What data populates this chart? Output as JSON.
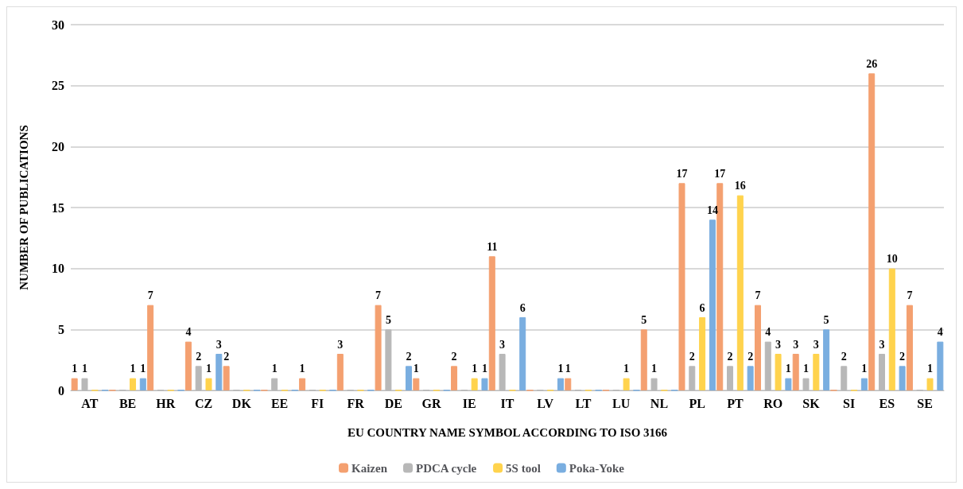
{
  "chart_data": {
    "type": "bar",
    "xlabel": "EU COUNTRY NAME SYMBOL ACCORDING TO ISO 3166",
    "ylabel": "NUMBER OF PUBLICATIONS",
    "categories": [
      "AT",
      "BE",
      "HR",
      "CZ",
      "DK",
      "EE",
      "FI",
      "FR",
      "DE",
      "GR",
      "IE",
      "IT",
      "LV",
      "LT",
      "LU",
      "NL",
      "PL",
      "PT",
      "RO",
      "SK",
      "SI",
      "ES",
      "SE"
    ],
    "series": [
      {
        "name": "Kaizen",
        "color": "#f4a070",
        "values": [
          1,
          0,
          7,
          4,
          2,
          0,
          1,
          3,
          7,
          1,
          2,
          11,
          0,
          1,
          0,
          5,
          17,
          17,
          7,
          3,
          0,
          26,
          7
        ],
        "value_labels": [
          "1",
          null,
          "7",
          "4",
          "2",
          null,
          "1",
          "3",
          "7",
          "1",
          "2",
          "11",
          null,
          "1",
          null,
          "5",
          "17",
          "17",
          "7",
          "3",
          null,
          "26",
          "7"
        ]
      },
      {
        "name": "PDCA cycle",
        "color": "#b8b8b8",
        "values": [
          1,
          0,
          0,
          2,
          0,
          1,
          0,
          0,
          5,
          0,
          0,
          3,
          0,
          0,
          0,
          1,
          2,
          2,
          4,
          1,
          2,
          3,
          0
        ],
        "value_labels": [
          "1",
          null,
          null,
          "2",
          null,
          "1",
          null,
          null,
          "5",
          null,
          null,
          "3",
          null,
          null,
          null,
          "1",
          "2",
          "2",
          "4",
          "1",
          "2",
          "3",
          null
        ]
      },
      {
        "name": "5S tool",
        "color": "#ffd34d",
        "values": [
          0,
          1,
          0,
          1,
          0,
          0,
          0,
          0,
          0,
          0,
          1,
          0,
          0,
          0,
          1,
          0,
          6,
          16,
          3,
          3,
          0,
          10,
          1
        ],
        "value_labels": [
          null,
          "1",
          null,
          "1",
          null,
          null,
          null,
          null,
          null,
          null,
          "1",
          null,
          null,
          null,
          "1",
          null,
          "6",
          "16",
          "3",
          "3",
          null,
          "10",
          "1"
        ]
      },
      {
        "name": "Poka-Yoke",
        "color": "#7aaee0",
        "values": [
          0,
          1,
          0,
          3,
          0,
          0,
          0,
          0,
          2,
          0,
          1,
          6,
          1,
          0,
          0,
          0,
          14,
          2,
          1,
          5,
          1,
          2,
          4
        ],
        "value_labels": [
          null,
          "1",
          null,
          "3",
          null,
          null,
          null,
          null,
          "2",
          null,
          "1",
          "6",
          "1",
          null,
          null,
          null,
          "14",
          "2",
          "1",
          "5",
          "1",
          "2",
          "4"
        ]
      }
    ],
    "ylim": [
      0,
      30
    ],
    "yticks": [
      0,
      5,
      10,
      15,
      20,
      25,
      30
    ],
    "grid": "y",
    "legend": "bottom"
  }
}
